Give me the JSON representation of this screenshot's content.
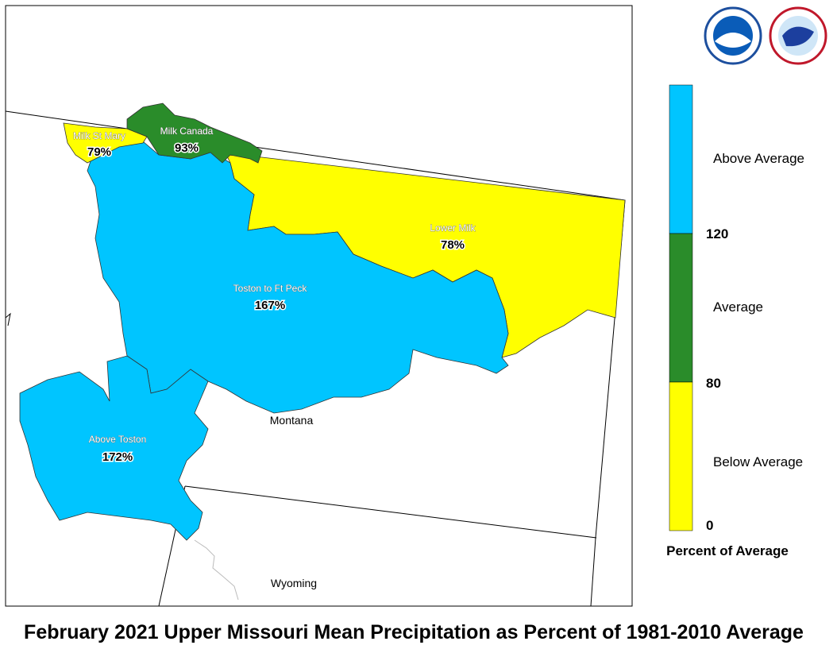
{
  "title": "February 2021 Upper Missouri Mean Precipitation as Percent of 1981-2010 Average",
  "regions": [
    {
      "name": "Milk St Mary",
      "percent": "79%"
    },
    {
      "name": "Milk Canada",
      "percent": "93%"
    },
    {
      "name": "Lower Milk",
      "percent": "78%"
    },
    {
      "name": "Toston to Ft Peck",
      "percent": "167%"
    },
    {
      "name": "Above Toston",
      "percent": "172%"
    }
  ],
  "states": [
    "Montana",
    "Wyoming"
  ],
  "legend": {
    "title": "Percent of Average",
    "classes": [
      "Above Average",
      "Average",
      "Below Average"
    ],
    "ticks": [
      120,
      80,
      0
    ]
  }
}
